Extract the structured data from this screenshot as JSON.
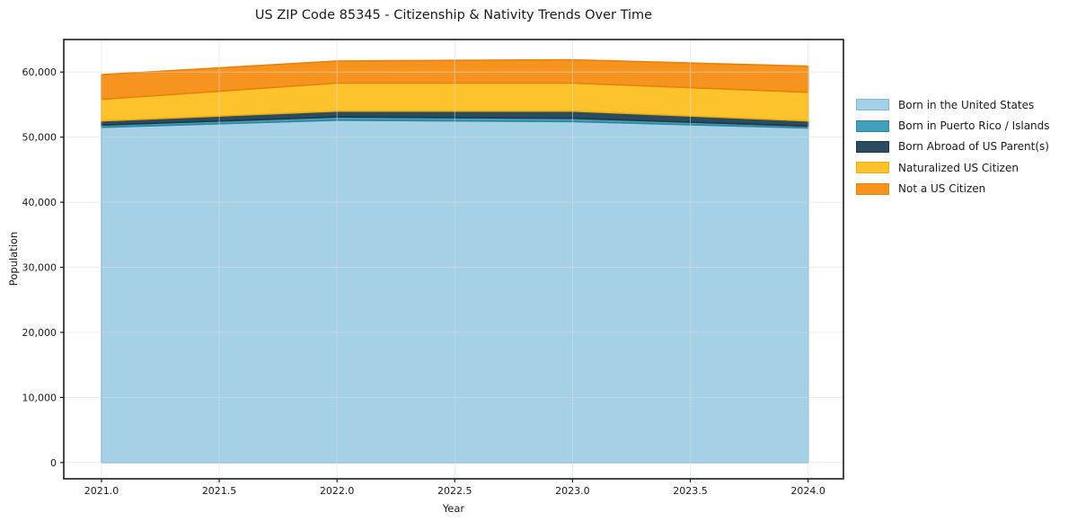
{
  "chart_data": {
    "type": "area",
    "stacked": true,
    "title": "US ZIP Code 85345 - Citizenship & Nativity Trends Over Time",
    "xlabel": "Year",
    "ylabel": "Population",
    "x": [
      2021,
      2022,
      2023,
      2024
    ],
    "series": [
      {
        "name": "Born in the United States",
        "slug": "born-in-the-united-states",
        "color": "#a4d1e6",
        "edge_color": "#7db8d4",
        "values": [
          51500,
          52600,
          52400,
          51400
        ]
      },
      {
        "name": "Born in Puerto Rico / Islands",
        "slug": "born-in-puerto-rico-islands",
        "color": "#41a0bc",
        "edge_color": "#35839b",
        "values": [
          350,
          500,
          500,
          300
        ]
      },
      {
        "name": "Born Abroad of US Parent(s)",
        "slug": "born-abroad-of-us-parents",
        "color": "#2b4b5e",
        "edge_color": "#1f3849",
        "values": [
          650,
          900,
          1100,
          800
        ]
      },
      {
        "name": "Naturalized US Citizen",
        "slug": "naturalized-us-citizen",
        "color": "#fdc32d",
        "edge_color": "#f0ad0e",
        "values": [
          3300,
          4300,
          4300,
          4400
        ]
      },
      {
        "name": "Not a US Citizen",
        "slug": "not-a-us-citizen",
        "color": "#f6941f",
        "edge_color": "#e5820d",
        "values": [
          3800,
          3400,
          3600,
          4000
        ]
      }
    ],
    "totals": [
      59600,
      61700,
      61900,
      60900
    ],
    "xticks": [
      2021.0,
      2021.5,
      2022.0,
      2022.5,
      2023.0,
      2023.5,
      2024.0
    ],
    "xtick_labels": [
      "2021.0",
      "2021.5",
      "2022.0",
      "2022.5",
      "2023.0",
      "2023.5",
      "2024.0"
    ],
    "yticks": [
      0,
      10000,
      20000,
      30000,
      40000,
      50000,
      60000
    ],
    "ytick_labels": [
      "0",
      "10,000",
      "20,000",
      "30,000",
      "40,000",
      "50,000",
      "60,000"
    ],
    "xlim": [
      2020.84,
      2024.15
    ],
    "ylim": [
      -2500,
      65000
    ],
    "grid": true,
    "grid_color": "#dddddd",
    "axis_color": "#1a1a1a",
    "background": "#ffffff",
    "legend_position": "right"
  }
}
